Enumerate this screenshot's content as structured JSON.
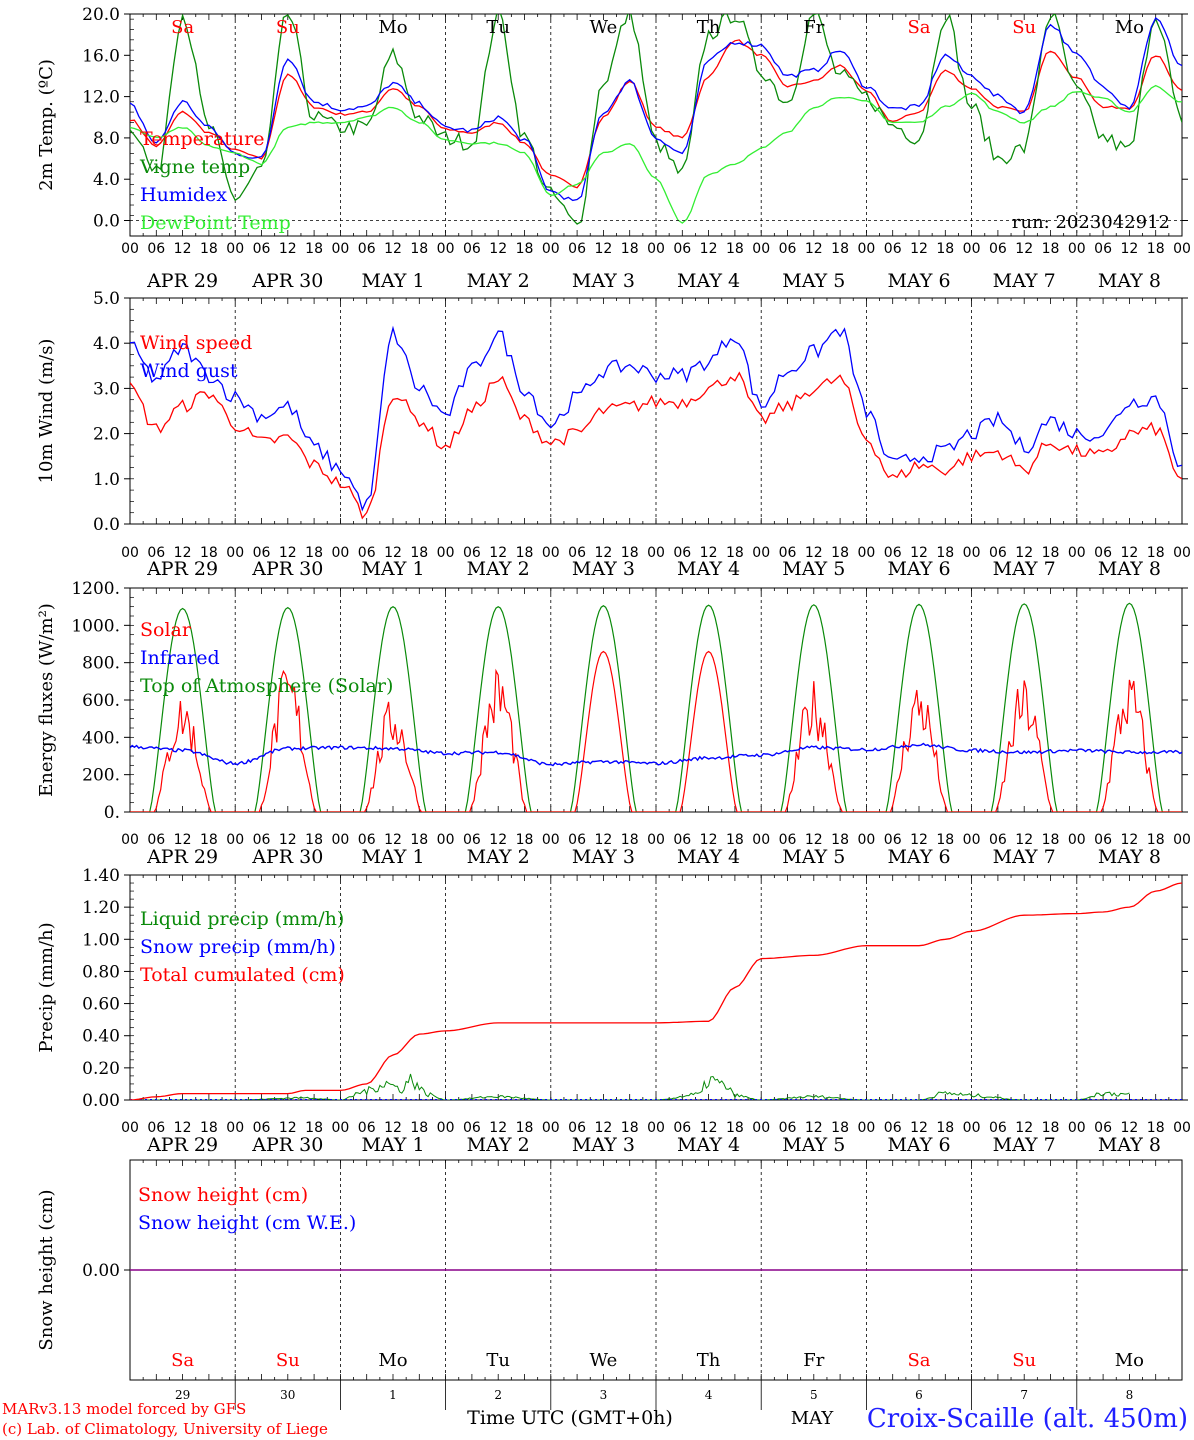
{
  "footer": {
    "model_line1": "MARv3.13 model forced by GFS",
    "model_line2": "(c) Lab. of Climatology, University of Liege",
    "xlabel": "Time UTC (GMT+0h)",
    "month_label": "MAY",
    "station": "Croix-Scaille (alt. 450m)"
  },
  "colors": {
    "red": "#ff0000",
    "green": "#0a8a0a",
    "blue": "#0000ff",
    "lightgreen": "#33ee33",
    "purple": "#880088"
  },
  "days": [
    "Sa",
    "Su",
    "Mo",
    "Tu",
    "We",
    "Th",
    "Fr",
    "Sa",
    "Su",
    "Mo"
  ],
  "day_colors": [
    "#ff0000",
    "#ff0000",
    "#000000",
    "#000000",
    "#000000",
    "#000000",
    "#000000",
    "#ff0000",
    "#ff0000",
    "#000000"
  ],
  "dates": [
    "APR 29",
    "APR 30",
    "MAY  1",
    "MAY  2",
    "MAY  3",
    "MAY  4",
    "MAY  5",
    "MAY  6",
    "MAY  7",
    "MAY  8"
  ],
  "bottom_day_numbers": [
    "29",
    "30",
    "1",
    "2",
    "3",
    "4",
    "5",
    "6",
    "7",
    "8"
  ],
  "hour_ticks": [
    "00",
    "06",
    "12",
    "18"
  ],
  "final_hour": "00",
  "chart_data": [
    {
      "type": "line",
      "panel": "temperature",
      "ylabel": "2m Temp. (ºC)",
      "ylim": [
        -1.5,
        20
      ],
      "yticks": [
        "0.0",
        "4.0",
        "8.0",
        "12.0",
        "16.0",
        "20.0"
      ],
      "ytick_values": [
        0,
        4,
        8,
        12,
        16,
        20
      ],
      "run_label": "run: 2023042912",
      "x_hours": [
        0,
        6,
        12,
        18,
        24,
        30,
        36,
        42,
        48,
        54,
        60,
        66,
        72,
        78,
        84,
        90,
        96,
        102,
        108,
        114,
        120,
        126,
        132,
        138,
        144,
        150,
        156,
        162,
        168,
        174,
        180,
        186,
        192,
        198,
        204,
        210,
        216,
        222,
        228,
        234,
        240
      ],
      "series": [
        {
          "name": "Temperature",
          "color": "#ff0000",
          "values": [
            9.8,
            7.2,
            10.5,
            8.5,
            6.8,
            6.0,
            14.2,
            11.0,
            10.3,
            10.5,
            12.8,
            11.0,
            8.8,
            8.5,
            9.5,
            7.5,
            4.3,
            3.3,
            10.0,
            13.5,
            9.0,
            8.0,
            14.0,
            17.5,
            16.0,
            13.0,
            13.5,
            15.0,
            12.5,
            9.6,
            10.5,
            14.5,
            12.8,
            11.0,
            10.5,
            16.5,
            13.8,
            11.0,
            10.8,
            16.0,
            12.6
          ]
        },
        {
          "name": "Vigne temp",
          "color": "#0a8a0a",
          "values": [
            9.3,
            4.5,
            20.0,
            9.0,
            2.2,
            5.0,
            20.0,
            10.0,
            9.0,
            9.0,
            16.0,
            10.0,
            8.0,
            7.5,
            20.0,
            8.0,
            2.5,
            -0.5,
            13.5,
            20.0,
            7.5,
            4.5,
            18.0,
            20.0,
            14.5,
            11.5,
            20.0,
            14.0,
            12.0,
            9.2,
            8.0,
            20.0,
            11.0,
            6.0,
            7.0,
            20.0,
            12.5,
            8.0,
            6.8,
            20.0,
            9.5
          ]
        },
        {
          "name": "Humidex",
          "color": "#0000ff",
          "values": [
            11.2,
            7.5,
            11.5,
            9.0,
            6.5,
            6.0,
            15.8,
            11.5,
            10.8,
            11.0,
            13.3,
            11.3,
            9.0,
            8.7,
            10.0,
            7.8,
            2.8,
            1.8,
            10.5,
            13.5,
            8.0,
            6.5,
            15.5,
            17.3,
            17.0,
            14.0,
            14.5,
            16.5,
            13.0,
            10.8,
            11.0,
            16.0,
            14.0,
            12.0,
            10.5,
            19.0,
            16.0,
            13.0,
            11.0,
            19.5,
            15.0
          ]
        },
        {
          "name": "DewPoint Temp",
          "color": "#33ee33",
          "values": [
            9.0,
            8.0,
            9.0,
            7.2,
            6.5,
            5.5,
            9.0,
            9.5,
            9.5,
            10.0,
            11.0,
            9.5,
            7.8,
            7.5,
            7.5,
            6.5,
            2.5,
            3.5,
            6.5,
            7.5,
            4.0,
            -0.3,
            4.5,
            5.5,
            7.0,
            8.5,
            11.0,
            12.0,
            11.5,
            9.5,
            9.5,
            11.0,
            12.3,
            10.5,
            9.5,
            11.0,
            12.5,
            11.8,
            10.5,
            13.0,
            11.5
          ]
        }
      ]
    },
    {
      "type": "line",
      "panel": "wind",
      "ylabel": "10m Wind (m/s)",
      "ylim": [
        0,
        5
      ],
      "yticks": [
        "0.0",
        "1.0",
        "2.0",
        "3.0",
        "4.0",
        "5.0"
      ],
      "ytick_values": [
        0,
        1,
        2,
        3,
        4,
        5
      ],
      "x_hours": [
        0,
        6,
        12,
        18,
        24,
        30,
        36,
        42,
        48,
        54,
        60,
        66,
        72,
        78,
        84,
        90,
        96,
        102,
        108,
        114,
        120,
        126,
        132,
        138,
        144,
        150,
        156,
        162,
        168,
        174,
        180,
        186,
        192,
        198,
        204,
        210,
        216,
        222,
        228,
        234,
        240
      ],
      "series": [
        {
          "name": "Wind speed",
          "color": "#ff0000",
          "values": [
            3.0,
            2.1,
            2.6,
            2.9,
            2.2,
            1.8,
            1.9,
            1.3,
            0.9,
            0.2,
            2.9,
            2.3,
            1.7,
            2.5,
            3.2,
            2.3,
            1.8,
            2.0,
            2.5,
            2.6,
            2.7,
            2.7,
            3.0,
            3.3,
            2.3,
            2.6,
            3.0,
            3.2,
            1.9,
            1.0,
            1.3,
            1.2,
            1.5,
            1.6,
            1.2,
            1.8,
            1.6,
            1.5,
            2.0,
            2.1,
            1.0
          ]
        },
        {
          "name": "Wind gust",
          "color": "#0000ff",
          "values": [
            3.9,
            3.2,
            3.9,
            3.3,
            2.8,
            2.4,
            2.6,
            1.7,
            1.2,
            0.4,
            4.2,
            3.0,
            2.4,
            3.4,
            4.2,
            3.0,
            2.2,
            2.8,
            3.4,
            3.5,
            3.3,
            3.3,
            3.6,
            4.2,
            2.6,
            3.4,
            3.8,
            4.3,
            2.5,
            1.3,
            1.5,
            1.6,
            2.0,
            2.3,
            1.7,
            2.3,
            2.0,
            2.0,
            2.7,
            2.8,
            1.3
          ]
        }
      ]
    },
    {
      "type": "line",
      "panel": "radiation",
      "ylabel": "Energy fluxes (W/m²)",
      "ylim": [
        0,
        1200
      ],
      "yticks": [
        "0.",
        "200.",
        "400.",
        "600.",
        "800.",
        "1000.",
        "1200."
      ],
      "ytick_values": [
        0,
        200,
        400,
        600,
        800,
        1000,
        1200
      ],
      "series": [
        {
          "name": "Solar",
          "color": "#ff0000",
          "day_peaks": [
            650,
            800,
            620,
            800,
            860,
            860,
            720,
            730,
            730,
            760
          ]
        },
        {
          "name": "Infrared",
          "color": "#0000ff",
          "x_hours": [
            0,
            12,
            24,
            36,
            48,
            60,
            72,
            84,
            96,
            108,
            120,
            132,
            144,
            156,
            168,
            180,
            192,
            204,
            216,
            228,
            240
          ],
          "values": [
            350,
            330,
            260,
            340,
            345,
            340,
            315,
            320,
            255,
            270,
            260,
            290,
            305,
            345,
            335,
            360,
            330,
            320,
            330,
            320,
            320
          ]
        },
        {
          "name": "Top of Atmosphere (Solar)",
          "color": "#0a8a0a",
          "day_peaks": [
            1090,
            1095,
            1100,
            1100,
            1105,
            1108,
            1110,
            1112,
            1115,
            1118
          ]
        }
      ]
    },
    {
      "type": "line",
      "panel": "precip",
      "ylabel": "Precip (mm/h)",
      "ylim": [
        0,
        1.4
      ],
      "yticks": [
        "0.00",
        "0.20",
        "0.40",
        "0.60",
        "0.80",
        "1.00",
        "1.20",
        "1.40"
      ],
      "ytick_values": [
        0,
        0.2,
        0.4,
        0.6,
        0.8,
        1.0,
        1.2,
        1.4
      ],
      "series": [
        {
          "name": "Liquid precip (mm/h)",
          "color": "#0a8a0a",
          "x_hours": [
            0,
            12,
            24,
            40,
            48,
            54,
            58,
            62,
            64,
            68,
            72,
            84,
            96,
            108,
            120,
            130,
            132,
            136,
            138,
            144,
            156,
            168,
            180,
            186,
            192,
            204,
            216,
            222,
            228
          ],
          "values": [
            0,
            0,
            0,
            0.02,
            0,
            0.08,
            0.15,
            0.1,
            0.18,
            0.05,
            0,
            0.03,
            0,
            0,
            0,
            0.05,
            0.18,
            0.12,
            0.04,
            0,
            0.03,
            0,
            0,
            0.06,
            0.04,
            0,
            0,
            0.06,
            0.05
          ]
        },
        {
          "name": "Snow precip (mm/h)",
          "color": "#0000ff",
          "x_hours": [
            0,
            240
          ],
          "values": [
            0,
            0
          ]
        },
        {
          "name": "Total cumulated (cm)",
          "color": "#ff0000",
          "x_hours": [
            0,
            6,
            12,
            24,
            36,
            40,
            48,
            54,
            60,
            66,
            72,
            84,
            96,
            108,
            120,
            132,
            138,
            144,
            156,
            168,
            180,
            186,
            192,
            204,
            216,
            222,
            228,
            234,
            240
          ],
          "values": [
            0,
            0.02,
            0.04,
            0.04,
            0.04,
            0.06,
            0.06,
            0.1,
            0.28,
            0.41,
            0.43,
            0.48,
            0.48,
            0.48,
            0.48,
            0.49,
            0.7,
            0.88,
            0.9,
            0.96,
            0.96,
            1.0,
            1.05,
            1.15,
            1.16,
            1.17,
            1.2,
            1.3,
            1.35
          ]
        }
      ]
    },
    {
      "type": "line",
      "panel": "snow",
      "ylabel": "Snow height (cm)",
      "ylim": [
        -1,
        1
      ],
      "yticks": [
        "0.00"
      ],
      "ytick_values": [
        0
      ],
      "series": [
        {
          "name": "Snow height (cm)",
          "color": "#ff0000",
          "x_hours": [
            0,
            240
          ],
          "values": [
            0,
            0
          ]
        },
        {
          "name": "Snow height (cm W.E.)",
          "color": "#0000ff",
          "x_hours": [
            0,
            240
          ],
          "values": [
            0,
            0
          ]
        }
      ]
    }
  ]
}
